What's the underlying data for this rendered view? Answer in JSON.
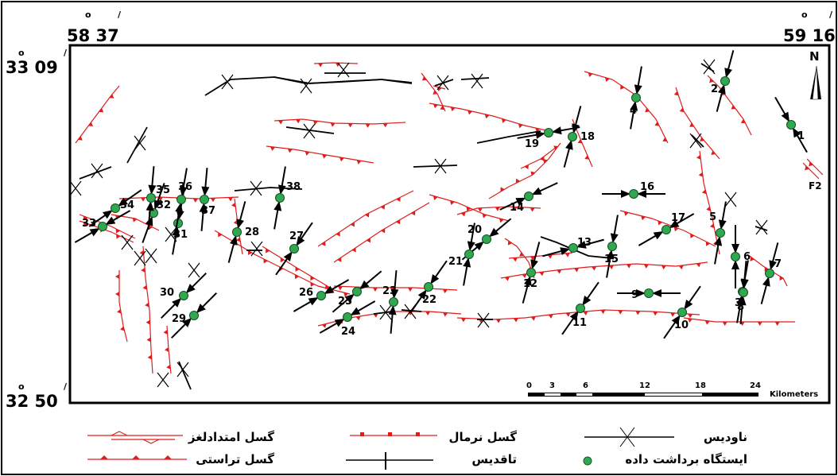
{
  "coordinates": {
    "top_left_lon": "58 37",
    "top_right_lon": "59 16",
    "top_left_lat": "33 09",
    "bottom_left_lat": "32 50",
    "degree_mark": "o",
    "minute_mark": "/"
  },
  "north_arrow": {
    "label": "N"
  },
  "fault_label": "F2",
  "scale_bar": {
    "ticks": [
      "0",
      "3",
      "6",
      "12",
      "18",
      "24"
    ],
    "units": "Kilometers"
  },
  "stations": [
    {
      "id": "1"
    },
    {
      "id": "2"
    },
    {
      "id": "3"
    },
    {
      "id": "4"
    },
    {
      "id": "5"
    },
    {
      "id": "6"
    },
    {
      "id": "7"
    },
    {
      "id": "8"
    },
    {
      "id": "9"
    },
    {
      "id": "10"
    },
    {
      "id": "11"
    },
    {
      "id": "12"
    },
    {
      "id": "13"
    },
    {
      "id": "14"
    },
    {
      "id": "15"
    },
    {
      "id": "16"
    },
    {
      "id": "17"
    },
    {
      "id": "18"
    },
    {
      "id": "19"
    },
    {
      "id": "20"
    },
    {
      "id": "21"
    },
    {
      "id": "22"
    },
    {
      "id": "23"
    },
    {
      "id": "24"
    },
    {
      "id": "25"
    },
    {
      "id": "26"
    },
    {
      "id": "27"
    },
    {
      "id": "28"
    },
    {
      "id": "30"
    },
    {
      "id": "29"
    },
    {
      "id": "31"
    },
    {
      "id": "32"
    },
    {
      "id": "33"
    },
    {
      "id": "34"
    },
    {
      "id": "35"
    },
    {
      "id": "36"
    },
    {
      "id": "37"
    },
    {
      "id": "38"
    }
  ],
  "legend": {
    "strike_slip": "گسل امتدادلغز",
    "normal": "گسل نرمال",
    "syncline": "ناودیس",
    "thrust": "گسل تراستی",
    "anticline": "تاقدیس",
    "station": "ایستگاه برداشت داده"
  },
  "colors": {
    "fault": "#e01c1c",
    "station": "#2fa84f",
    "fold": "#000000"
  }
}
